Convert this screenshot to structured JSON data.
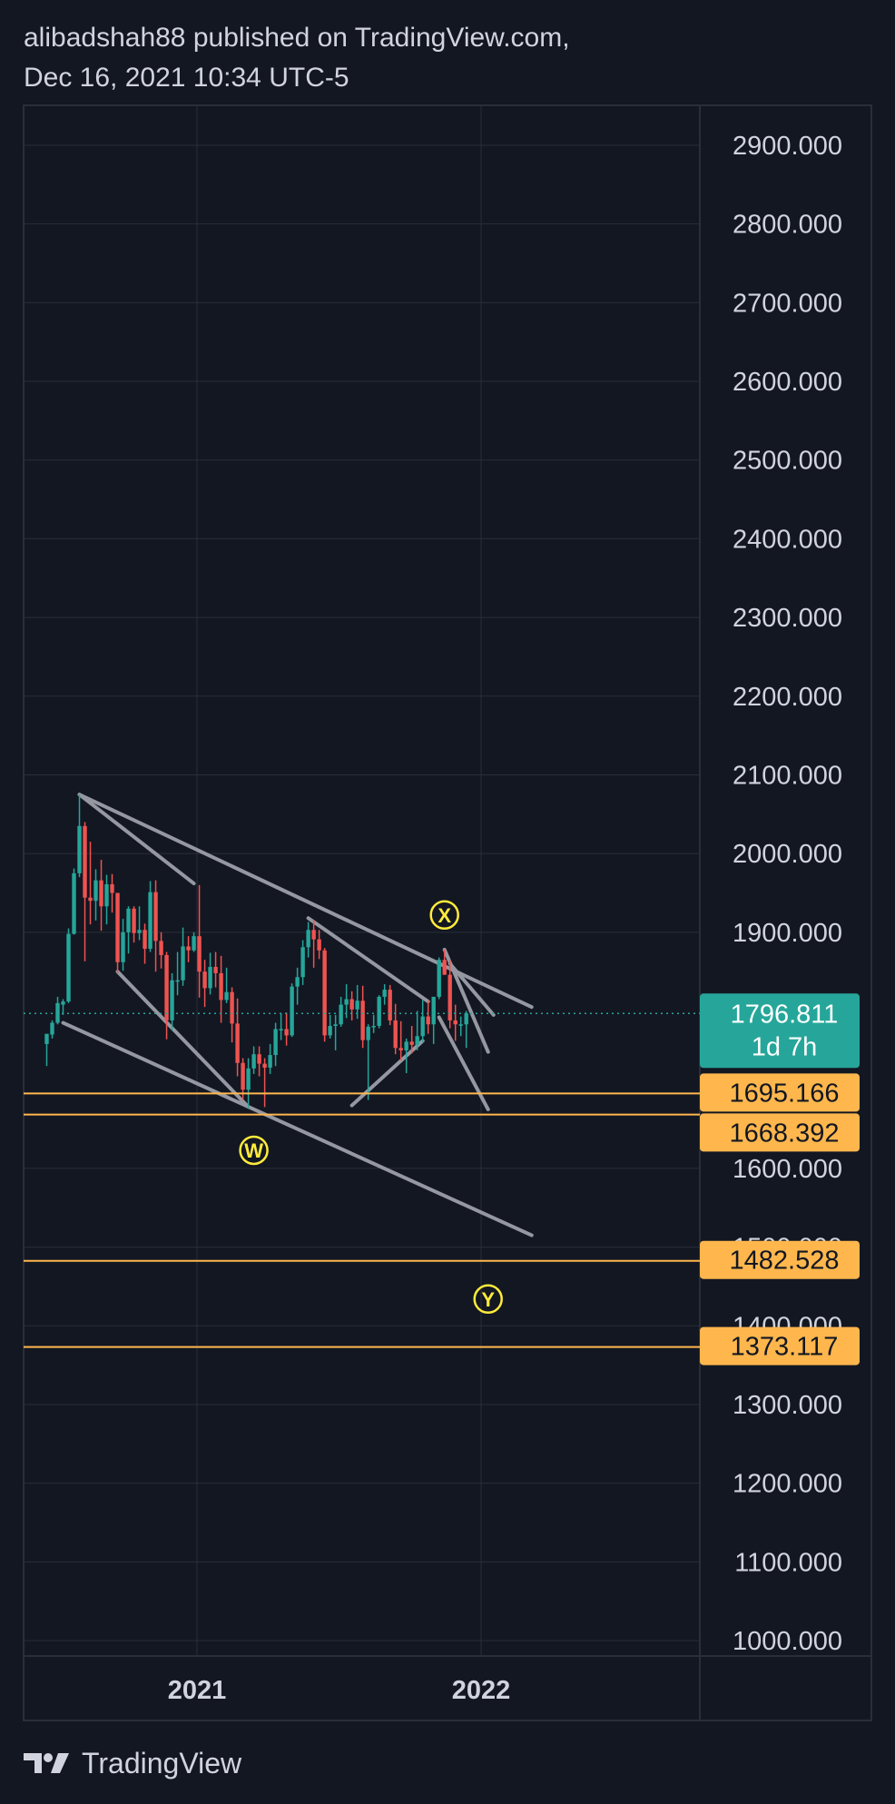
{
  "header": {
    "publisher_line": "alibadshah88 published on TradingView.com,",
    "date_line": "Dec 16, 2021 10:34 UTC-5"
  },
  "footer": {
    "brand": "TradingView",
    "logo_icon": "tradingview-logo-icon"
  },
  "colors": {
    "background": "#131722",
    "grid": "#2a2e39",
    "axis_text": "#d1d4dc",
    "up_candle": "#26a69a",
    "down_candle": "#ef5350",
    "trendline": "#9598a1",
    "level": "#ffb74d",
    "current_price": "#26a69a",
    "wave_label": "#ffeb3b"
  },
  "chart_data": {
    "type": "candlestick",
    "timeframe": "weekly",
    "y_axis": {
      "ylim": [
        985,
        2950
      ],
      "ticks": [
        "2900.000",
        "2800.000",
        "2700.000",
        "2600.000",
        "2500.000",
        "2400.000",
        "2300.000",
        "2200.000",
        "2100.000",
        "2000.000",
        "1900.000",
        "1600.000",
        "1300.000",
        "1200.000",
        "1100.000",
        "1000.000"
      ],
      "partially_hidden_ticks": [
        "1500.000",
        "1400.000"
      ]
    },
    "x_axis": {
      "ticks": [
        "2021",
        "2022"
      ],
      "grid": true
    },
    "current_price": {
      "value": 1796.811,
      "label": "1796.811",
      "countdown": "1d 7h"
    },
    "levels": [
      {
        "value": 1695.166,
        "label": "1695.166"
      },
      {
        "value": 1668.392,
        "label": "1668.392"
      },
      {
        "value": 1482.528,
        "label": "1482.528"
      },
      {
        "value": 1373.117,
        "label": "1373.117"
      }
    ],
    "wave_labels": [
      {
        "text": "W",
        "date": "2021-03-15",
        "value": 1623
      },
      {
        "text": "X",
        "date": "2021-11-15",
        "value": 1922
      },
      {
        "text": "Y",
        "date": "2022-01-10",
        "value": 1434
      }
    ],
    "trendlines": [
      {
        "from": [
          "2020-08-03",
          2075
        ],
        "to": [
          "2022-03-07",
          1805
        ]
      },
      {
        "from": [
          "2020-08-03",
          2075
        ],
        "to": [
          "2020-12-28",
          1962
        ]
      },
      {
        "from": [
          "2020-09-21",
          1850
        ],
        "to": [
          "2021-03-08",
          1678
        ]
      },
      {
        "from": [
          "2020-07-13",
          1785
        ],
        "to": [
          "2022-03-07",
          1515
        ]
      },
      {
        "from": [
          "2021-05-24",
          1918
        ],
        "to": [
          "2021-10-25",
          1812
        ]
      },
      {
        "from": [
          "2021-07-19",
          1680
        ],
        "to": [
          "2021-10-18",
          1762
        ]
      },
      {
        "from": [
          "2021-11-15",
          1878
        ],
        "to": [
          "2022-01-10",
          1748
        ]
      },
      {
        "from": [
          "2021-11-22",
          1860
        ],
        "to": [
          "2022-01-17",
          1795
        ]
      },
      {
        "from": [
          "2021-11-08",
          1792
        ],
        "to": [
          "2022-01-10",
          1675
        ]
      }
    ],
    "candles": [
      {
        "t": "2020-06-22",
        "o": 1758,
        "h": 1770,
        "l": 1730,
        "c": 1771
      },
      {
        "t": "2020-06-29",
        "o": 1770,
        "h": 1788,
        "l": 1765,
        "c": 1785
      },
      {
        "t": "2020-07-06",
        "o": 1785,
        "h": 1818,
        "l": 1783,
        "c": 1810
      },
      {
        "t": "2020-07-13",
        "o": 1808,
        "h": 1815,
        "l": 1795,
        "c": 1812
      },
      {
        "t": "2020-07-20",
        "o": 1812,
        "h": 1905,
        "l": 1810,
        "c": 1898
      },
      {
        "t": "2020-07-27",
        "o": 1898,
        "h": 1981,
        "l": 1897,
        "c": 1975
      },
      {
        "t": "2020-08-03",
        "o": 1975,
        "h": 2075,
        "l": 1970,
        "c": 2035
      },
      {
        "t": "2020-08-10",
        "o": 2035,
        "h": 2040,
        "l": 1863,
        "c": 1944
      },
      {
        "t": "2020-08-17",
        "o": 1944,
        "h": 2015,
        "l": 1910,
        "c": 1940
      },
      {
        "t": "2020-08-24",
        "o": 1940,
        "h": 1980,
        "l": 1915,
        "c": 1966
      },
      {
        "t": "2020-08-31",
        "o": 1966,
        "h": 1992,
        "l": 1902,
        "c": 1933
      },
      {
        "t": "2020-09-07",
        "o": 1933,
        "h": 1973,
        "l": 1910,
        "c": 1961
      },
      {
        "t": "2020-09-14",
        "o": 1961,
        "h": 1974,
        "l": 1925,
        "c": 1950
      },
      {
        "t": "2020-09-21",
        "o": 1950,
        "h": 1950,
        "l": 1848,
        "c": 1862
      },
      {
        "t": "2020-09-28",
        "o": 1862,
        "h": 1917,
        "l": 1851,
        "c": 1900
      },
      {
        "t": "2020-10-05",
        "o": 1900,
        "h": 1933,
        "l": 1873,
        "c": 1930
      },
      {
        "t": "2020-10-12",
        "o": 1930,
        "h": 1933,
        "l": 1887,
        "c": 1899
      },
      {
        "t": "2020-10-19",
        "o": 1899,
        "h": 1933,
        "l": 1890,
        "c": 1903
      },
      {
        "t": "2020-10-26",
        "o": 1903,
        "h": 1911,
        "l": 1860,
        "c": 1879
      },
      {
        "t": "2020-11-02",
        "o": 1879,
        "h": 1965,
        "l": 1875,
        "c": 1951
      },
      {
        "t": "2020-11-09",
        "o": 1951,
        "h": 1966,
        "l": 1850,
        "c": 1889
      },
      {
        "t": "2020-11-16",
        "o": 1889,
        "h": 1900,
        "l": 1854,
        "c": 1871
      },
      {
        "t": "2020-11-23",
        "o": 1871,
        "h": 1875,
        "l": 1764,
        "c": 1788
      },
      {
        "t": "2020-11-30",
        "o": 1788,
        "h": 1848,
        "l": 1775,
        "c": 1839
      },
      {
        "t": "2020-12-07",
        "o": 1839,
        "h": 1875,
        "l": 1820,
        "c": 1839
      },
      {
        "t": "2020-12-14",
        "o": 1839,
        "h": 1906,
        "l": 1832,
        "c": 1882
      },
      {
        "t": "2020-12-21",
        "o": 1882,
        "h": 1895,
        "l": 1862,
        "c": 1877
      },
      {
        "t": "2020-12-28",
        "o": 1877,
        "h": 1900,
        "l": 1875,
        "c": 1895
      },
      {
        "t": "2021-01-04",
        "o": 1895,
        "h": 1960,
        "l": 1817,
        "c": 1850
      },
      {
        "t": "2021-01-11",
        "o": 1850,
        "h": 1865,
        "l": 1805,
        "c": 1829
      },
      {
        "t": "2021-01-18",
        "o": 1829,
        "h": 1874,
        "l": 1821,
        "c": 1856
      },
      {
        "t": "2021-01-25",
        "o": 1856,
        "h": 1875,
        "l": 1830,
        "c": 1848
      },
      {
        "t": "2021-02-01",
        "o": 1848,
        "h": 1870,
        "l": 1785,
        "c": 1814
      },
      {
        "t": "2021-02-08",
        "o": 1814,
        "h": 1855,
        "l": 1810,
        "c": 1824
      },
      {
        "t": "2021-02-15",
        "o": 1824,
        "h": 1830,
        "l": 1760,
        "c": 1784
      },
      {
        "t": "2021-02-22",
        "o": 1784,
        "h": 1816,
        "l": 1717,
        "c": 1734
      },
      {
        "t": "2021-03-01",
        "o": 1734,
        "h": 1740,
        "l": 1687,
        "c": 1700
      },
      {
        "t": "2021-03-08",
        "o": 1700,
        "h": 1740,
        "l": 1676,
        "c": 1727
      },
      {
        "t": "2021-03-15",
        "o": 1727,
        "h": 1755,
        "l": 1720,
        "c": 1745
      },
      {
        "t": "2021-03-22",
        "o": 1745,
        "h": 1755,
        "l": 1717,
        "c": 1733
      },
      {
        "t": "2021-03-29",
        "o": 1733,
        "h": 1740,
        "l": 1678,
        "c": 1728
      },
      {
        "t": "2021-04-05",
        "o": 1728,
        "h": 1758,
        "l": 1720,
        "c": 1744
      },
      {
        "t": "2021-04-12",
        "o": 1744,
        "h": 1785,
        "l": 1730,
        "c": 1777
      },
      {
        "t": "2021-04-19",
        "o": 1777,
        "h": 1797,
        "l": 1763,
        "c": 1777
      },
      {
        "t": "2021-04-26",
        "o": 1777,
        "h": 1798,
        "l": 1756,
        "c": 1769
      },
      {
        "t": "2021-05-03",
        "o": 1769,
        "h": 1835,
        "l": 1767,
        "c": 1831
      },
      {
        "t": "2021-05-10",
        "o": 1831,
        "h": 1855,
        "l": 1808,
        "c": 1843
      },
      {
        "t": "2021-05-17",
        "o": 1843,
        "h": 1890,
        "l": 1833,
        "c": 1881
      },
      {
        "t": "2021-05-24",
        "o": 1881,
        "h": 1913,
        "l": 1868,
        "c": 1903
      },
      {
        "t": "2021-05-31",
        "o": 1903,
        "h": 1916,
        "l": 1855,
        "c": 1891
      },
      {
        "t": "2021-06-07",
        "o": 1891,
        "h": 1903,
        "l": 1866,
        "c": 1877
      },
      {
        "t": "2021-06-14",
        "o": 1877,
        "h": 1880,
        "l": 1761,
        "c": 1769
      },
      {
        "t": "2021-06-21",
        "o": 1769,
        "h": 1795,
        "l": 1765,
        "c": 1781
      },
      {
        "t": "2021-06-28",
        "o": 1781,
        "h": 1795,
        "l": 1750,
        "c": 1783
      },
      {
        "t": "2021-07-05",
        "o": 1783,
        "h": 1818,
        "l": 1780,
        "c": 1808
      },
      {
        "t": "2021-07-12",
        "o": 1808,
        "h": 1834,
        "l": 1791,
        "c": 1815
      },
      {
        "t": "2021-07-19",
        "o": 1815,
        "h": 1825,
        "l": 1788,
        "c": 1802
      },
      {
        "t": "2021-07-26",
        "o": 1802,
        "h": 1833,
        "l": 1790,
        "c": 1813
      },
      {
        "t": "2021-08-02",
        "o": 1813,
        "h": 1832,
        "l": 1753,
        "c": 1763
      },
      {
        "t": "2021-08-09",
        "o": 1763,
        "h": 1783,
        "l": 1687,
        "c": 1780
      },
      {
        "t": "2021-08-16",
        "o": 1780,
        "h": 1795,
        "l": 1772,
        "c": 1781
      },
      {
        "t": "2021-08-23",
        "o": 1781,
        "h": 1820,
        "l": 1778,
        "c": 1818
      },
      {
        "t": "2021-08-30",
        "o": 1818,
        "h": 1834,
        "l": 1808,
        "c": 1827
      },
      {
        "t": "2021-09-06",
        "o": 1827,
        "h": 1833,
        "l": 1782,
        "c": 1788
      },
      {
        "t": "2021-09-13",
        "o": 1788,
        "h": 1809,
        "l": 1745,
        "c": 1753
      },
      {
        "t": "2021-09-20",
        "o": 1753,
        "h": 1787,
        "l": 1737,
        "c": 1750
      },
      {
        "t": "2021-09-27",
        "o": 1750,
        "h": 1765,
        "l": 1721,
        "c": 1761
      },
      {
        "t": "2021-10-04",
        "o": 1761,
        "h": 1781,
        "l": 1746,
        "c": 1757
      },
      {
        "t": "2021-10-11",
        "o": 1757,
        "h": 1800,
        "l": 1750,
        "c": 1768
      },
      {
        "t": "2021-10-18",
        "o": 1768,
        "h": 1814,
        "l": 1760,
        "c": 1793
      },
      {
        "t": "2021-10-25",
        "o": 1793,
        "h": 1813,
        "l": 1771,
        "c": 1783
      },
      {
        "t": "2021-11-01",
        "o": 1783,
        "h": 1818,
        "l": 1758,
        "c": 1818
      },
      {
        "t": "2021-11-08",
        "o": 1818,
        "h": 1868,
        "l": 1815,
        "c": 1865
      },
      {
        "t": "2021-11-15",
        "o": 1865,
        "h": 1878,
        "l": 1846,
        "c": 1846
      },
      {
        "t": "2021-11-22",
        "o": 1846,
        "h": 1865,
        "l": 1778,
        "c": 1788
      },
      {
        "t": "2021-11-29",
        "o": 1788,
        "h": 1808,
        "l": 1762,
        "c": 1783
      },
      {
        "t": "2021-12-06",
        "o": 1783,
        "h": 1793,
        "l": 1768,
        "c": 1783
      },
      {
        "t": "2021-12-13",
        "o": 1783,
        "h": 1800,
        "l": 1753,
        "c": 1797
      }
    ]
  }
}
